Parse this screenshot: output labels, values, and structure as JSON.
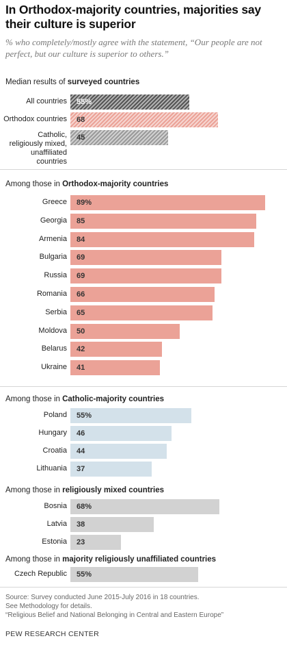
{
  "title": "In Orthodox-majority countries, majorities say their culture is superior",
  "subtitle": "% who completely/mostly agree with the statement, “Our people are not perfect, but our culture is superior to others.”",
  "colors": {
    "median_all": "#555555",
    "median_orthodox": "#eba297",
    "median_other": "#9a9a9a",
    "orthodox": "#eba297",
    "catholic": "#d3e1ea",
    "mixed": "#d2d2d2",
    "unaffiliated": "#d2d2d2"
  },
  "chart_data": [
    {
      "type": "bar",
      "section_prefix": "Median results of ",
      "section_bold": "surveyed countries",
      "hatched": true,
      "categories": [
        "All countries",
        "Orthodox countries",
        "Catholic, religiously mixed, unaffiliated countries"
      ],
      "values": [
        55,
        68,
        45
      ],
      "labels": [
        "55%",
        "68",
        "45"
      ],
      "colors": [
        "#555555",
        "#eba297",
        "#9a9a9a"
      ],
      "xlim": [
        0,
        100
      ]
    },
    {
      "type": "bar",
      "section_prefix": "Among those in ",
      "section_bold": "Orthodox-majority countries",
      "categories": [
        "Greece",
        "Georgia",
        "Armenia",
        "Bulgaria",
        "Russia",
        "Romania",
        "Serbia",
        "Moldova",
        "Belarus",
        "Ukraine"
      ],
      "values": [
        89,
        85,
        84,
        69,
        69,
        66,
        65,
        50,
        42,
        41
      ],
      "labels": [
        "89%",
        "85",
        "84",
        "69",
        "69",
        "66",
        "65",
        "50",
        "42",
        "41"
      ],
      "color": "#eba297",
      "xlim": [
        0,
        100
      ]
    },
    {
      "type": "bar",
      "section_prefix": "Among those in ",
      "section_bold": "Catholic-majority countries",
      "categories": [
        "Poland",
        "Hungary",
        "Croatia",
        "Lithuania"
      ],
      "values": [
        55,
        46,
        44,
        37
      ],
      "labels": [
        "55%",
        "46",
        "44",
        "37"
      ],
      "color": "#d3e1ea",
      "xlim": [
        0,
        100
      ]
    },
    {
      "type": "bar",
      "section_prefix": "Among those in ",
      "section_bold": "religiously mixed countries",
      "categories": [
        "Bosnia",
        "Latvia",
        "Estonia"
      ],
      "values": [
        68,
        38,
        23
      ],
      "labels": [
        "68%",
        "38",
        "23"
      ],
      "color": "#d2d2d2",
      "xlim": [
        0,
        100
      ]
    },
    {
      "type": "bar",
      "section_prefix": "Among those in ",
      "section_bold": "majority religiously unaffiliated countries",
      "categories": [
        "Czech Republic"
      ],
      "values": [
        55
      ],
      "labels": [
        "55%"
      ],
      "color": "#d2d2d2",
      "xlim": [
        0,
        100
      ]
    }
  ],
  "footer": {
    "source": "Source: Survey conducted June 2015-July 2016 in 18 countries.",
    "methodology": "See Methodology for details.",
    "report": "“Religious Belief and National Belonging in Central and Eastern Europe”",
    "org": "PEW RESEARCH CENTER"
  }
}
